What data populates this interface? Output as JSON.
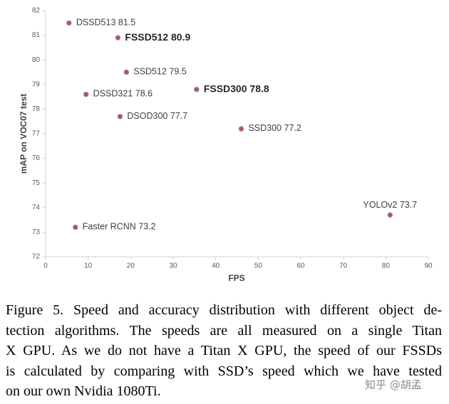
{
  "chart_data": {
    "type": "scatter",
    "xlabel": "FPS",
    "ylabel": "mAP on VOC07 test",
    "names": [
      "DSSD513",
      "FSSD512",
      "SSD512",
      "DSSD321",
      "FSSD300",
      "DSOD300",
      "SSD300",
      "YOLOv2",
      "Faster RCNN"
    ],
    "x": [
      5.5,
      17,
      19,
      9.5,
      35.5,
      17.5,
      46,
      81,
      7
    ],
    "y": [
      81.5,
      80.9,
      79.5,
      78.6,
      78.8,
      77.7,
      77.2,
      73.7,
      73.2
    ],
    "bold": [
      false,
      true,
      false,
      false,
      true,
      false,
      false,
      false,
      false
    ],
    "color": "#c0504d",
    "xlim": [
      0,
      90
    ],
    "xticks": [
      0,
      10,
      20,
      30,
      40,
      50,
      60,
      70,
      80,
      90
    ],
    "ylim": [
      72,
      82
    ],
    "yticks": [
      72,
      73,
      74,
      75,
      76,
      77,
      78,
      79,
      80,
      81,
      82
    ]
  },
  "caption": [
    "Figure 5. Speed and accuracy distribution with different object de-",
    "tection algorithms.  The speeds are all measured on a single Titan",
    "X GPU. As we do not have a Titan X GPU, the speed of our FSSDs",
    "is calculated by comparing with SSD’s speed which we have tested",
    "on our own Nvidia 1080Ti."
  ],
  "watermark": "知乎 @胡孟"
}
